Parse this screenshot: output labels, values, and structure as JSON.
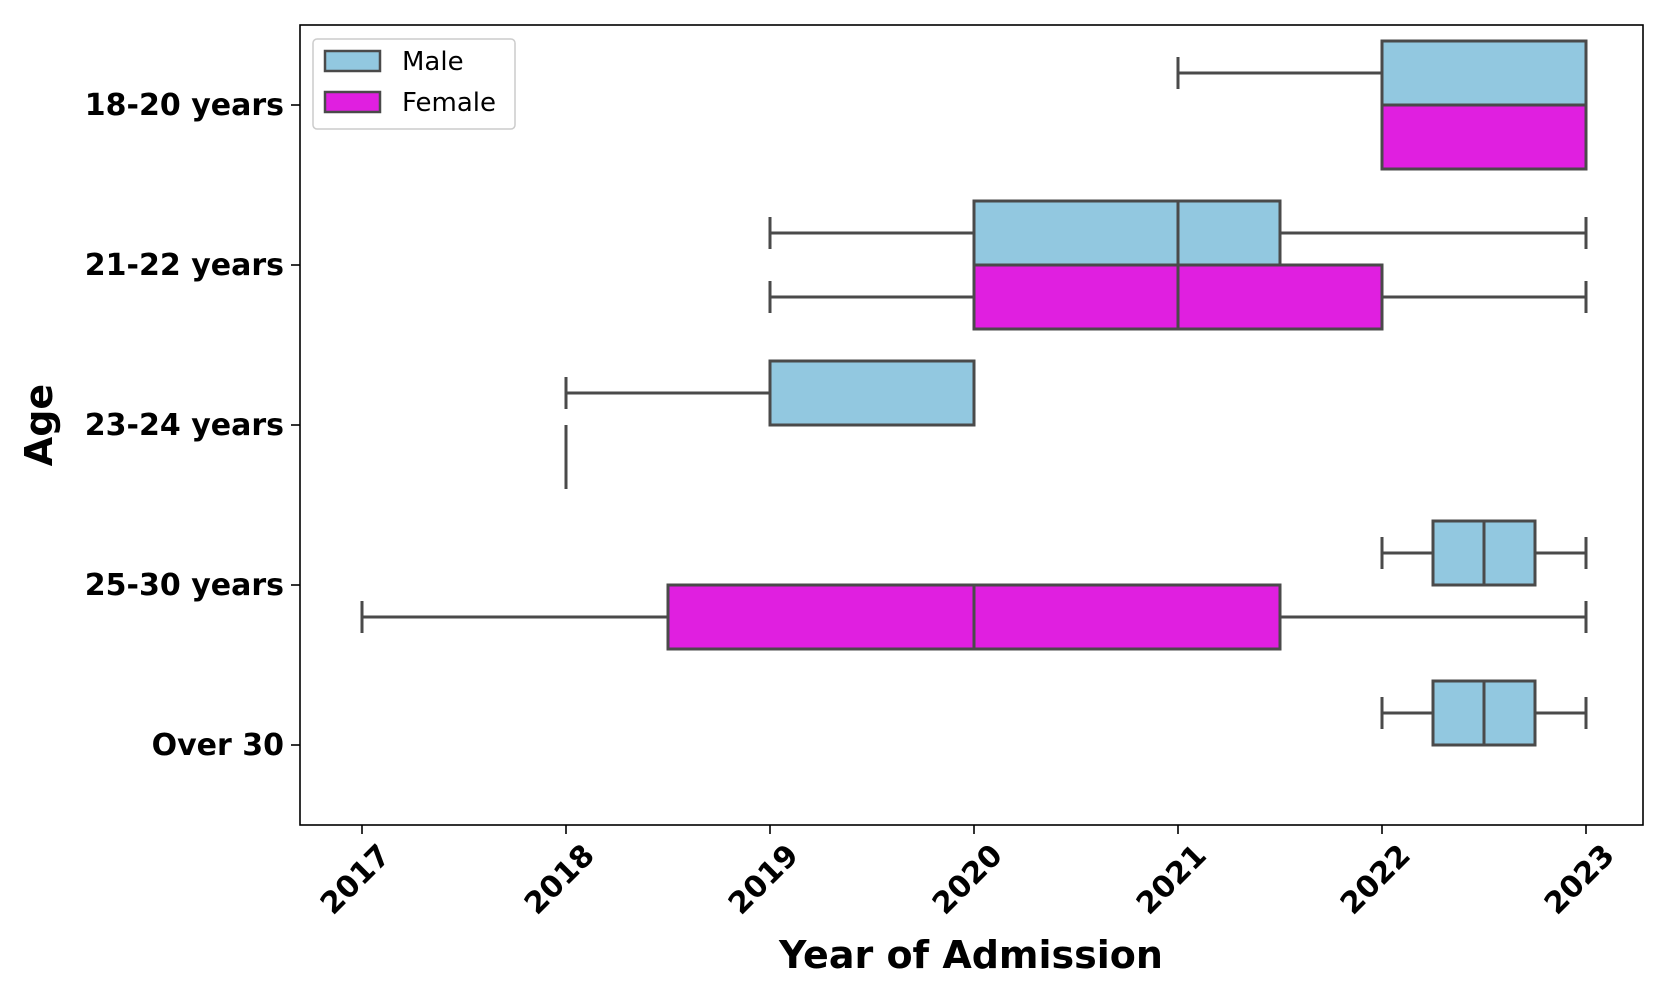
{
  "chart_data": {
    "type": "boxplot",
    "orientation": "horizontal",
    "title": "",
    "xlabel": "Year of Admission",
    "ylabel": "Age",
    "xlim": [
      2016.7,
      2023.3
    ],
    "xticks": [
      2017,
      2018,
      2019,
      2020,
      2021,
      2022,
      2023
    ],
    "xtick_labels": [
      "2017",
      "2018",
      "2019",
      "2020",
      "2021",
      "2022",
      "2023"
    ],
    "categories": [
      "18-20 years",
      "21-22 years",
      "23-24 years",
      "25-30 years",
      "Over 30"
    ],
    "legend": {
      "placement": "top-left",
      "entries": [
        "Male",
        "Female"
      ]
    },
    "colors": {
      "Male": "#92c8e0",
      "Female": "#e01fe0",
      "edge": "#4a4a4a"
    },
    "series": [
      {
        "name": "Male",
        "boxes": [
          {
            "category": "18-20 years",
            "min": 2021,
            "q1": 2022,
            "median": 2023,
            "q3": 2023,
            "max": 2023
          },
          {
            "category": "21-22 years",
            "min": 2019,
            "q1": 2020,
            "median": 2021,
            "q3": 2021.5,
            "max": 2023
          },
          {
            "category": "23-24 years",
            "min": 2018,
            "q1": 2019,
            "median": 2020,
            "q3": 2020,
            "max": 2020
          },
          {
            "category": "25-30 years",
            "min": 2022,
            "q1": 2022.25,
            "median": 2022.5,
            "q3": 2022.75,
            "max": 2023
          },
          {
            "category": "Over 30",
            "min": 2022,
            "q1": 2022.25,
            "median": 2022.5,
            "q3": 2022.75,
            "max": 2023
          }
        ]
      },
      {
        "name": "Female",
        "boxes": [
          {
            "category": "18-20 years",
            "min": 2022,
            "q1": 2022,
            "median": 2022,
            "q3": 2023,
            "max": 2023
          },
          {
            "category": "21-22 years",
            "min": 2019,
            "q1": 2020,
            "median": 2021,
            "q3": 2022,
            "max": 2023
          },
          {
            "category": "23-24 years",
            "min": 2018,
            "q1": 2018,
            "median": 2018,
            "q3": 2018,
            "max": 2018
          },
          {
            "category": "25-30 years",
            "min": 2017,
            "q1": 2018.5,
            "median": 2020,
            "q3": 2021.5,
            "max": 2023
          }
        ]
      }
    ]
  }
}
